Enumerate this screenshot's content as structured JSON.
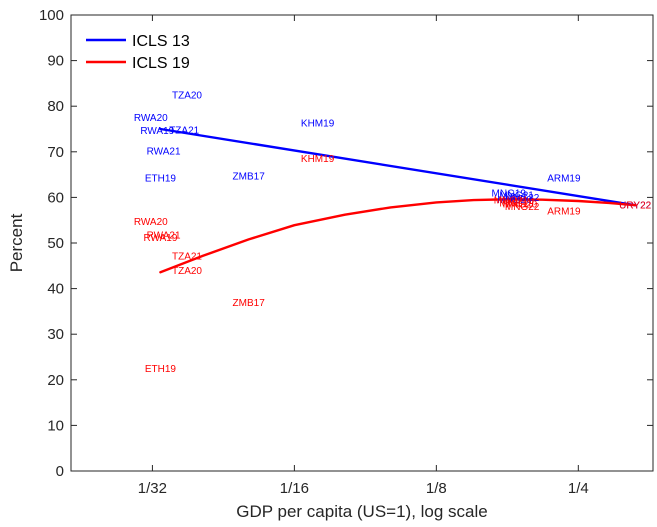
{
  "chart_data": {
    "type": "scatter",
    "xlabel": "GDP per capita (US=1), log scale",
    "ylabel": "Percent",
    "x_scale": "log2",
    "xlim": [
      0.021,
      0.36
    ],
    "ylim": [
      0,
      100
    ],
    "y_ticks": [
      0,
      10,
      20,
      30,
      40,
      50,
      60,
      70,
      80,
      90,
      100
    ],
    "x_ticks": [
      {
        "value": 0.03125,
        "label": "1/32"
      },
      {
        "value": 0.0625,
        "label": "1/16"
      },
      {
        "value": 0.125,
        "label": "1/8"
      },
      {
        "value": 0.25,
        "label": "1/4"
      }
    ],
    "grid": false,
    "legend": {
      "position": "top-left"
    },
    "colors": {
      "ICLS 13": "#0000ff",
      "ICLS 19": "#ff0000"
    },
    "series": [
      {
        "name": "ICLS 13",
        "color": "#0000ff",
        "fit_line": {
          "x": [
            0.0325,
            0.33
          ],
          "y": [
            75.0,
            58.3
          ]
        },
        "points": [
          {
            "label": "TZA20",
            "x": 0.037,
            "y": 82.5
          },
          {
            "label": "RWA20",
            "x": 0.031,
            "y": 77.5
          },
          {
            "label": "RWA19",
            "x": 0.032,
            "y": 74.7
          },
          {
            "label": "TZA21",
            "x": 0.0365,
            "y": 74.8
          },
          {
            "label": "KHM19",
            "x": 0.07,
            "y": 76.3
          },
          {
            "label": "RWA21",
            "x": 0.033,
            "y": 70.2
          },
          {
            "label": "ETH19",
            "x": 0.0325,
            "y": 64.3
          },
          {
            "label": "ZMB17",
            "x": 0.05,
            "y": 64.7
          },
          {
            "label": "ARM19",
            "x": 0.233,
            "y": 64.2
          },
          {
            "label": "MNG19",
            "x": 0.178,
            "y": 61.0
          },
          {
            "label": "MNG21",
            "x": 0.185,
            "y": 60.5
          },
          {
            "label": "MNG22",
            "x": 0.19,
            "y": 60.0
          },
          {
            "label": "MNG20",
            "x": 0.183,
            "y": 59.5
          },
          {
            "label": "URY22",
            "x": 0.33,
            "y": 58.3
          }
        ]
      },
      {
        "name": "ICLS 19",
        "color": "#ff0000",
        "fit_line": {
          "x": [
            0.0325,
            0.04,
            0.05,
            0.0625,
            0.08,
            0.1,
            0.125,
            0.15,
            0.18,
            0.21,
            0.25,
            0.29,
            0.33
          ],
          "y": [
            43.6,
            47.2,
            50.8,
            53.9,
            56.2,
            57.8,
            58.9,
            59.4,
            59.6,
            59.5,
            59.2,
            58.8,
            58.3
          ]
        },
        "points": [
          {
            "label": "KHM19",
            "x": 0.07,
            "y": 68.5
          },
          {
            "label": "RWA20",
            "x": 0.031,
            "y": 54.7
          },
          {
            "label": "RWA21",
            "x": 0.033,
            "y": 51.8
          },
          {
            "label": "RWA19",
            "x": 0.0325,
            "y": 51.2
          },
          {
            "label": "TZA21",
            "x": 0.037,
            "y": 47.2
          },
          {
            "label": "TZA20",
            "x": 0.037,
            "y": 44.0
          },
          {
            "label": "ZMB17",
            "x": 0.05,
            "y": 37.0
          },
          {
            "label": "ETH19",
            "x": 0.0325,
            "y": 22.5
          },
          {
            "label": "MNG21",
            "x": 0.18,
            "y": 59.4
          },
          {
            "label": "MNG19",
            "x": 0.185,
            "y": 58.8
          },
          {
            "label": "MNG20",
            "x": 0.188,
            "y": 58.5
          },
          {
            "label": "MNG22",
            "x": 0.19,
            "y": 58.0
          },
          {
            "label": "ARM19",
            "x": 0.233,
            "y": 57.0
          },
          {
            "label": "URY22",
            "x": 0.33,
            "y": 58.3
          }
        ]
      }
    ]
  }
}
